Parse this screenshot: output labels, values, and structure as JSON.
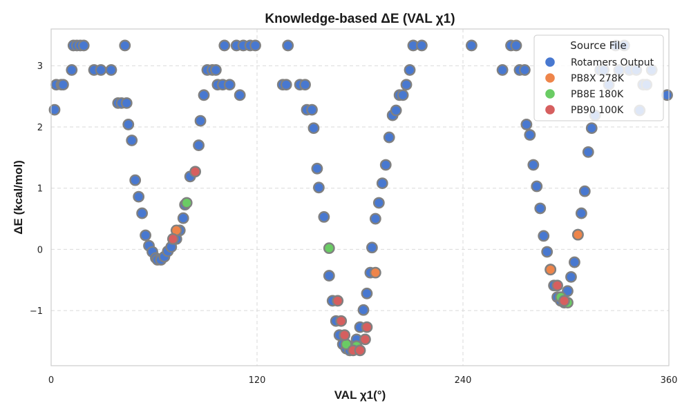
{
  "chart_data": {
    "type": "scatter",
    "title": "Knowledge-based ΔE (VAL χ1)",
    "xlabel": "VAL χ1(°)",
    "ylabel": "ΔE (kcal/mol)",
    "xlim": [
      0,
      360
    ],
    "ylim": [
      -1.9,
      3.6
    ],
    "xticks": [
      0,
      120,
      240,
      360
    ],
    "yticks": [
      -1,
      0,
      1,
      2,
      3
    ],
    "ytick_labels": [
      "−1",
      "0",
      "1",
      "2",
      "3"
    ],
    "grid": true,
    "legend": {
      "title": "Source File",
      "position": "top-right"
    },
    "series": [
      {
        "name": "Rotamers Output",
        "color": "#4878d0",
        "points": [
          [
            2,
            2.28
          ],
          [
            3,
            2.69
          ],
          [
            6,
            2.69
          ],
          [
            7,
            2.69
          ],
          [
            12,
            2.93
          ],
          [
            13,
            3.33
          ],
          [
            15,
            3.33
          ],
          [
            17,
            3.33
          ],
          [
            19,
            3.33
          ],
          [
            25,
            2.93
          ],
          [
            29,
            2.93
          ],
          [
            35,
            2.93
          ],
          [
            39,
            2.39
          ],
          [
            41,
            2.39
          ],
          [
            43,
            3.33
          ],
          [
            44,
            2.39
          ],
          [
            45,
            2.04
          ],
          [
            47,
            1.78
          ],
          [
            49,
            1.13
          ],
          [
            51,
            0.86
          ],
          [
            53,
            0.59
          ],
          [
            55,
            0.23
          ],
          [
            57,
            0.06
          ],
          [
            59,
            -0.04
          ],
          [
            61,
            -0.14
          ],
          [
            62,
            -0.17
          ],
          [
            64,
            -0.17
          ],
          [
            66,
            -0.12
          ],
          [
            68,
            -0.03
          ],
          [
            70,
            0.04
          ],
          [
            73,
            0.17
          ],
          [
            75,
            0.31
          ],
          [
            77,
            0.51
          ],
          [
            78,
            0.73
          ],
          [
            81,
            1.19
          ],
          [
            86,
            1.7
          ],
          [
            87,
            2.1
          ],
          [
            89,
            2.52
          ],
          [
            91,
            2.93
          ],
          [
            94,
            2.93
          ],
          [
            96,
            2.93
          ],
          [
            97,
            2.69
          ],
          [
            100,
            2.69
          ],
          [
            101,
            3.33
          ],
          [
            104,
            2.69
          ],
          [
            108,
            3.33
          ],
          [
            110,
            2.52
          ],
          [
            112,
            3.33
          ],
          [
            116,
            3.33
          ],
          [
            119,
            3.33
          ],
          [
            135,
            2.69
          ],
          [
            137,
            2.69
          ],
          [
            138,
            3.33
          ],
          [
            145,
            2.69
          ],
          [
            148,
            2.69
          ],
          [
            149,
            2.28
          ],
          [
            152,
            2.28
          ],
          [
            153,
            1.98
          ],
          [
            155,
            1.32
          ],
          [
            156,
            1.01
          ],
          [
            159,
            0.53
          ],
          [
            162,
            -0.43
          ],
          [
            164,
            -0.84
          ],
          [
            166,
            -1.17
          ],
          [
            168,
            -1.4
          ],
          [
            170,
            -1.55
          ],
          [
            172,
            -1.62
          ],
          [
            174,
            -1.65
          ],
          [
            176,
            -1.58
          ],
          [
            178,
            -1.47
          ],
          [
            180,
            -1.27
          ],
          [
            182,
            -0.99
          ],
          [
            184,
            -0.72
          ],
          [
            186,
            -0.38
          ],
          [
            187,
            0.03
          ],
          [
            189,
            0.5
          ],
          [
            191,
            0.76
          ],
          [
            193,
            1.08
          ],
          [
            195,
            1.38
          ],
          [
            197,
            1.83
          ],
          [
            199,
            2.19
          ],
          [
            201,
            2.27
          ],
          [
            203,
            2.52
          ],
          [
            205,
            2.52
          ],
          [
            207,
            2.69
          ],
          [
            209,
            2.93
          ],
          [
            211,
            3.33
          ],
          [
            216,
            3.33
          ],
          [
            245,
            3.33
          ],
          [
            263,
            2.93
          ],
          [
            268,
            3.33
          ],
          [
            271,
            3.33
          ],
          [
            273,
            2.93
          ],
          [
            276,
            2.93
          ],
          [
            277,
            2.04
          ],
          [
            279,
            1.87
          ],
          [
            281,
            1.38
          ],
          [
            283,
            1.03
          ],
          [
            285,
            0.67
          ],
          [
            287,
            0.22
          ],
          [
            289,
            -0.04
          ],
          [
            291,
            -0.33
          ],
          [
            293,
            -0.59
          ],
          [
            295,
            -0.78
          ],
          [
            297,
            -0.84
          ],
          [
            299,
            -0.87
          ],
          [
            301,
            -0.68
          ],
          [
            303,
            -0.45
          ],
          [
            305,
            -0.21
          ],
          [
            307,
            0.24
          ],
          [
            309,
            0.59
          ],
          [
            311,
            0.95
          ],
          [
            313,
            1.59
          ],
          [
            315,
            1.98
          ],
          [
            317,
            2.19
          ],
          [
            320,
            2.93
          ],
          [
            322,
            2.93
          ],
          [
            325,
            2.69
          ],
          [
            329,
            3.33
          ],
          [
            331,
            2.93
          ],
          [
            334,
            3.33
          ],
          [
            337,
            2.93
          ],
          [
            341,
            2.93
          ],
          [
            343,
            2.27
          ],
          [
            345,
            2.69
          ],
          [
            347,
            2.69
          ],
          [
            350,
            2.93
          ],
          [
            359,
            2.52
          ]
        ]
      },
      {
        "name": "PB8X 278K",
        "color": "#ee854a",
        "points": [
          [
            73,
            0.31
          ],
          [
            189,
            -0.38
          ],
          [
            291,
            -0.33
          ],
          [
            307,
            0.24
          ]
        ]
      },
      {
        "name": "PB8E 180K",
        "color": "#6acc64",
        "points": [
          [
            79,
            0.76
          ],
          [
            162,
            0.02
          ],
          [
            172,
            -1.55
          ],
          [
            178,
            -1.58
          ],
          [
            297,
            -0.78
          ],
          [
            301,
            -0.87
          ]
        ]
      },
      {
        "name": "PB90 100K",
        "color": "#d65f5f",
        "points": [
          [
            71,
            0.17
          ],
          [
            84,
            1.27
          ],
          [
            167,
            -0.84
          ],
          [
            169,
            -1.17
          ],
          [
            171,
            -1.4
          ],
          [
            176,
            -1.65
          ],
          [
            180,
            -1.65
          ],
          [
            183,
            -1.47
          ],
          [
            184,
            -1.27
          ],
          [
            295,
            -0.59
          ],
          [
            299,
            -0.84
          ]
        ]
      }
    ]
  }
}
